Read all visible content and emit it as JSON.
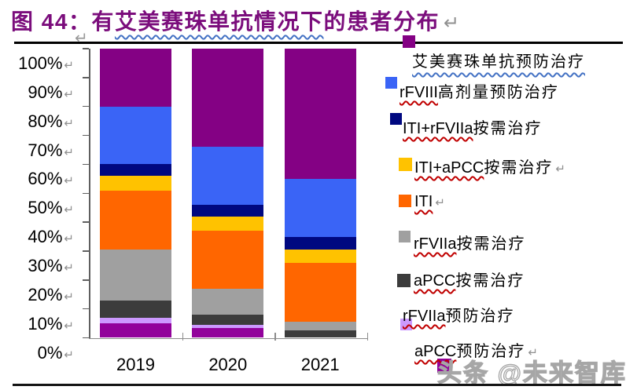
{
  "title": {
    "pre": "图 44：有",
    "wavy": "艾美赛珠单抗情况下",
    "post": "的患者分布"
  },
  "watermark": "头条 @未来智库",
  "return_mark": "↵",
  "chart_data": {
    "type": "bar",
    "stacked": true,
    "percent": true,
    "title": "图 44：有艾美赛珠单抗情况下的患者分布",
    "categories": [
      "2019",
      "2020",
      "2021"
    ],
    "series": [
      {
        "latin": "",
        "cjk": "艾美赛珠单抗预防治疗",
        "color": "#840184",
        "values": [
          20,
          34,
          45
        ],
        "arrow": false
      },
      {
        "latin": "rFVIII",
        "cjk": "高剂量预防治疗",
        "color": "#3A64F6",
        "values": [
          20,
          20,
          20
        ],
        "arrow": false
      },
      {
        "latin": "ITI+rFVIIa",
        "cjk": "按需治疗",
        "color": "#000880",
        "values": [
          4,
          4,
          4.5
        ],
        "arrow": false
      },
      {
        "latin": "ITI+aPCC",
        "cjk": "按需治疗",
        "color": "#FFC200",
        "values": [
          5,
          5,
          4.5
        ],
        "arrow": true
      },
      {
        "latin": "ITI",
        "cjk": "",
        "color": "#FF6600",
        "values": [
          20.5,
          20,
          20.5
        ],
        "arrow": true
      },
      {
        "latin": "rFVIIa",
        "cjk": "按需治疗",
        "color": "#A0A0A0",
        "values": [
          17.5,
          9,
          3
        ],
        "arrow": false
      },
      {
        "latin": "aPCC",
        "cjk": "按需治疗",
        "color": "#3C3C3C",
        "values": [
          6,
          3.5,
          2.5
        ],
        "arrow": false
      },
      {
        "latin": "rFVIIa",
        "cjk": "预防治疗",
        "color": "#CC99FF",
        "values": [
          2,
          1,
          0
        ],
        "arrow": false
      },
      {
        "latin": "aPCC",
        "cjk": "预防治疗",
        "color": "#92029B",
        "values": [
          5,
          3.5,
          0
        ],
        "arrow": true
      }
    ],
    "y_axis": {
      "min": 0,
      "max": 100,
      "step": 10,
      "suffix": "%"
    },
    "legend_position": "right",
    "grid": false
  }
}
